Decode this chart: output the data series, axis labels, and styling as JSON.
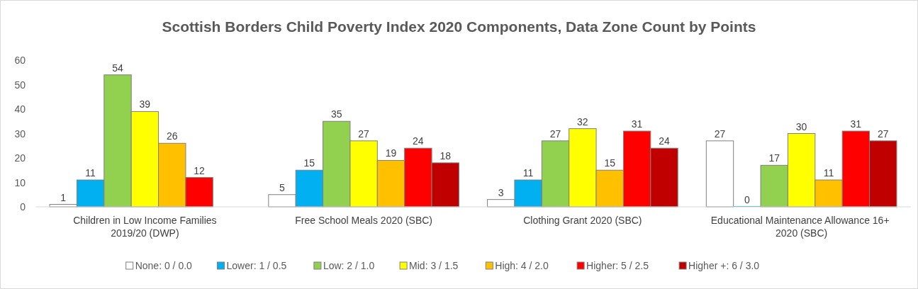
{
  "chart_data": {
    "type": "bar",
    "title": "Scottish Borders Child Poverty Index 2020 Components, Data Zone Count by Points",
    "categories": [
      "Children in Low Income Families 2019/20 (DWP)",
      "Free School Meals 2020 (SBC)",
      "Clothing Grant 2020 (SBC)",
      "Educational Maintenance Allowance 16+  2020 (SBC)"
    ],
    "series": [
      {
        "name": "None: 0 / 0.0",
        "color": "#ffffff",
        "values": [
          1,
          5,
          3,
          27
        ]
      },
      {
        "name": "Lower: 1 / 0.5",
        "color": "#00b0f0",
        "values": [
          11,
          15,
          11,
          0
        ]
      },
      {
        "name": "Low: 2 / 1.0",
        "color": "#92d050",
        "values": [
          54,
          35,
          27,
          17
        ]
      },
      {
        "name": "Mid: 3 / 1.5",
        "color": "#ffff00",
        "values": [
          39,
          27,
          32,
          30
        ]
      },
      {
        "name": "High: 4 / 2.0",
        "color": "#ffc000",
        "values": [
          26,
          19,
          15,
          11
        ]
      },
      {
        "name": "Higher: 5 / 2.5",
        "color": "#ff0000",
        "values": [
          12,
          24,
          31,
          31
        ]
      },
      {
        "name": "Higher +: 6 / 3.0",
        "color": "#c00000",
        "values": [
          null,
          18,
          24,
          27
        ]
      }
    ],
    "ylim": [
      0,
      60
    ],
    "yticks": [
      0,
      10,
      20,
      30,
      40,
      50,
      60
    ],
    "data_labels": true,
    "legend": "bottom"
  }
}
